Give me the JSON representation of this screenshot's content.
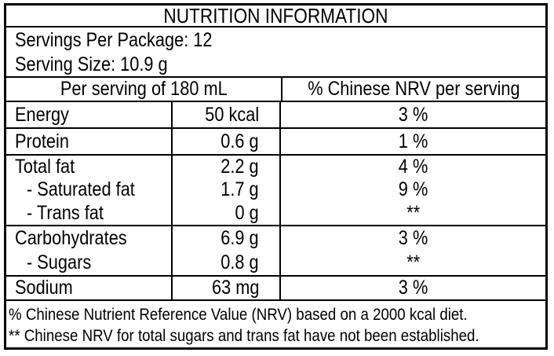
{
  "label": {
    "title": "NUTRITION INFORMATION",
    "servings_per_package": "Servings Per Package: 12",
    "serving_size": "Serving Size: 10.9 g",
    "columns": {
      "per_serving": "Per serving of 180 mL",
      "nrv": "% Chinese NRV per serving"
    },
    "groups": [
      {
        "rows": [
          {
            "nutrient": "Energy",
            "amount": "50 kcal",
            "nrv": "3 %"
          }
        ]
      },
      {
        "rows": [
          {
            "nutrient": "Protein",
            "amount": "0.6 g",
            "nrv": "1 %"
          }
        ]
      },
      {
        "rows": [
          {
            "nutrient": "Total fat",
            "amount": "2.2 g",
            "nrv": "4 %"
          },
          {
            "nutrient": "- Saturated fat",
            "amount": "1.7 g",
            "nrv": "9 %"
          },
          {
            "nutrient": "- Trans fat",
            "amount": "0 g",
            "nrv": "**"
          }
        ]
      },
      {
        "rows": [
          {
            "nutrient": "Carbohydrates",
            "amount": "6.9 g",
            "nrv": "3 %"
          },
          {
            "nutrient": "- Sugars",
            "amount": "0.8 g",
            "nrv": "**"
          }
        ]
      },
      {
        "rows": [
          {
            "nutrient": "Sodium",
            "amount": "63 mg",
            "nrv": "3 %"
          }
        ]
      }
    ],
    "footnotes": [
      "% Chinese Nutrient Reference Value (NRV) based on a 2000 kcal diet.",
      "** Chinese NRV for total sugars and trans fat have not been established."
    ],
    "colors": {
      "text": "#000000",
      "border": "#000000",
      "background": "#ffffff"
    }
  }
}
